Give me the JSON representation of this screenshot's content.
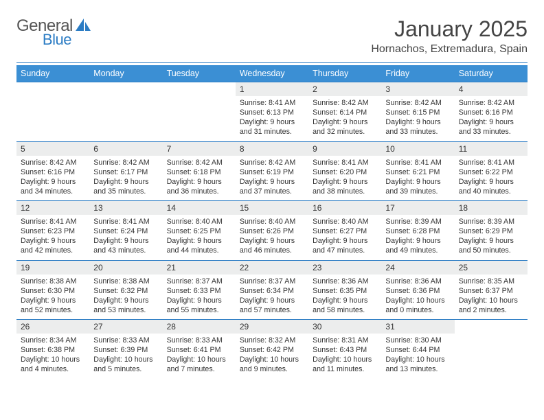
{
  "brand": {
    "name1": "General",
    "name2": "Blue"
  },
  "title": "January 2025",
  "subtitle": "Hornachos, Extremadura, Spain",
  "colors": {
    "accent": "#3b8fd4",
    "rule": "#2b7cc4",
    "daybg": "#eceded"
  },
  "day_headers": [
    "Sunday",
    "Monday",
    "Tuesday",
    "Wednesday",
    "Thursday",
    "Friday",
    "Saturday"
  ],
  "weeks": [
    [
      null,
      null,
      null,
      {
        "n": "1",
        "sr": "8:41 AM",
        "ss": "6:13 PM",
        "dl": "9 hours and 31 minutes."
      },
      {
        "n": "2",
        "sr": "8:42 AM",
        "ss": "6:14 PM",
        "dl": "9 hours and 32 minutes."
      },
      {
        "n": "3",
        "sr": "8:42 AM",
        "ss": "6:15 PM",
        "dl": "9 hours and 33 minutes."
      },
      {
        "n": "4",
        "sr": "8:42 AM",
        "ss": "6:16 PM",
        "dl": "9 hours and 33 minutes."
      }
    ],
    [
      {
        "n": "5",
        "sr": "8:42 AM",
        "ss": "6:16 PM",
        "dl": "9 hours and 34 minutes."
      },
      {
        "n": "6",
        "sr": "8:42 AM",
        "ss": "6:17 PM",
        "dl": "9 hours and 35 minutes."
      },
      {
        "n": "7",
        "sr": "8:42 AM",
        "ss": "6:18 PM",
        "dl": "9 hours and 36 minutes."
      },
      {
        "n": "8",
        "sr": "8:42 AM",
        "ss": "6:19 PM",
        "dl": "9 hours and 37 minutes."
      },
      {
        "n": "9",
        "sr": "8:41 AM",
        "ss": "6:20 PM",
        "dl": "9 hours and 38 minutes."
      },
      {
        "n": "10",
        "sr": "8:41 AM",
        "ss": "6:21 PM",
        "dl": "9 hours and 39 minutes."
      },
      {
        "n": "11",
        "sr": "8:41 AM",
        "ss": "6:22 PM",
        "dl": "9 hours and 40 minutes."
      }
    ],
    [
      {
        "n": "12",
        "sr": "8:41 AM",
        "ss": "6:23 PM",
        "dl": "9 hours and 42 minutes."
      },
      {
        "n": "13",
        "sr": "8:41 AM",
        "ss": "6:24 PM",
        "dl": "9 hours and 43 minutes."
      },
      {
        "n": "14",
        "sr": "8:40 AM",
        "ss": "6:25 PM",
        "dl": "9 hours and 44 minutes."
      },
      {
        "n": "15",
        "sr": "8:40 AM",
        "ss": "6:26 PM",
        "dl": "9 hours and 46 minutes."
      },
      {
        "n": "16",
        "sr": "8:40 AM",
        "ss": "6:27 PM",
        "dl": "9 hours and 47 minutes."
      },
      {
        "n": "17",
        "sr": "8:39 AM",
        "ss": "6:28 PM",
        "dl": "9 hours and 49 minutes."
      },
      {
        "n": "18",
        "sr": "8:39 AM",
        "ss": "6:29 PM",
        "dl": "9 hours and 50 minutes."
      }
    ],
    [
      {
        "n": "19",
        "sr": "8:38 AM",
        "ss": "6:30 PM",
        "dl": "9 hours and 52 minutes."
      },
      {
        "n": "20",
        "sr": "8:38 AM",
        "ss": "6:32 PM",
        "dl": "9 hours and 53 minutes."
      },
      {
        "n": "21",
        "sr": "8:37 AM",
        "ss": "6:33 PM",
        "dl": "9 hours and 55 minutes."
      },
      {
        "n": "22",
        "sr": "8:37 AM",
        "ss": "6:34 PM",
        "dl": "9 hours and 57 minutes."
      },
      {
        "n": "23",
        "sr": "8:36 AM",
        "ss": "6:35 PM",
        "dl": "9 hours and 58 minutes."
      },
      {
        "n": "24",
        "sr": "8:36 AM",
        "ss": "6:36 PM",
        "dl": "10 hours and 0 minutes."
      },
      {
        "n": "25",
        "sr": "8:35 AM",
        "ss": "6:37 PM",
        "dl": "10 hours and 2 minutes."
      }
    ],
    [
      {
        "n": "26",
        "sr": "8:34 AM",
        "ss": "6:38 PM",
        "dl": "10 hours and 4 minutes."
      },
      {
        "n": "27",
        "sr": "8:33 AM",
        "ss": "6:39 PM",
        "dl": "10 hours and 5 minutes."
      },
      {
        "n": "28",
        "sr": "8:33 AM",
        "ss": "6:41 PM",
        "dl": "10 hours and 7 minutes."
      },
      {
        "n": "29",
        "sr": "8:32 AM",
        "ss": "6:42 PM",
        "dl": "10 hours and 9 minutes."
      },
      {
        "n": "30",
        "sr": "8:31 AM",
        "ss": "6:43 PM",
        "dl": "10 hours and 11 minutes."
      },
      {
        "n": "31",
        "sr": "8:30 AM",
        "ss": "6:44 PM",
        "dl": "10 hours and 13 minutes."
      },
      null
    ]
  ],
  "labels": {
    "sunrise": "Sunrise: ",
    "sunset": "Sunset: ",
    "daylight": "Daylight: "
  }
}
